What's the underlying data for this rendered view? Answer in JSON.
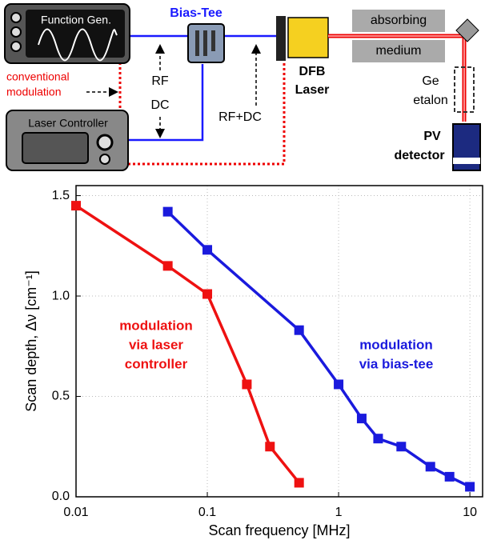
{
  "diagram": {
    "function_gen": "Function Gen.",
    "bias_tee": "Bias-Tee",
    "rf": "RF",
    "dc": "DC",
    "rf_dc": "RF+DC",
    "conventional": [
      "conventional",
      "modulation"
    ],
    "laser_controller": "Laser Controller",
    "dfb": [
      "DFB",
      "Laser"
    ],
    "medium": [
      "absorbing",
      "medium"
    ],
    "etalon": [
      "Ge",
      "etalon"
    ],
    "detector": [
      "PV",
      "detector"
    ]
  },
  "chart_data": {
    "type": "line",
    "x_label": "Scan frequency [MHz]",
    "y_label": "Scan depth, Δν [cm⁻¹]",
    "xscale": "log",
    "xlim": [
      0.01,
      12.5
    ],
    "ylim": [
      0,
      1.55
    ],
    "xticks": [
      0.01,
      0.1,
      1,
      10
    ],
    "yticks": [
      {
        "value": 0,
        "label": "0.0"
      },
      0.5,
      {
        "value": 1,
        "label": "1.0"
      },
      1.5
    ],
    "grid": true,
    "series": [
      {
        "name": "modulation via laser controller",
        "color": "#ee1111",
        "x": [
          0.01,
          0.05,
          0.1,
          0.2,
          0.3,
          0.5
        ],
        "values": [
          1.45,
          1.15,
          1.01,
          0.56,
          0.25,
          0.07
        ],
        "annotation": [
          "modulation",
          "via laser",
          "controller"
        ]
      },
      {
        "name": "modulation via bias-tee",
        "color": "#1a1add",
        "x": [
          0.05,
          0.1,
          0.5,
          1,
          1.5,
          2,
          3,
          5,
          7,
          10
        ],
        "values": [
          1.42,
          1.23,
          0.83,
          0.56,
          0.39,
          0.29,
          0.25,
          0.15,
          0.1,
          0.05
        ],
        "annotation": [
          "modulation",
          "via bias-tee"
        ]
      }
    ]
  }
}
